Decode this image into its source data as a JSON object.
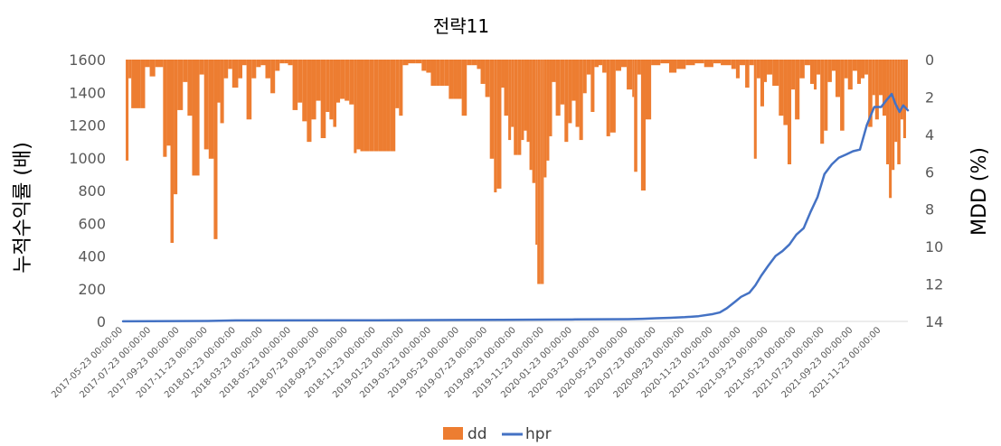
{
  "chart_data": {
    "type": "bar+line",
    "title": "전략11",
    "ylabel_left": "누적수익률 (배)",
    "ylabel_right": "MDD (%)",
    "ylim_left": [
      0,
      1600
    ],
    "yticks_left": [
      0,
      200,
      400,
      600,
      800,
      1000,
      1200,
      1400,
      1600
    ],
    "ylim_right": [
      0,
      14
    ],
    "right_axis_inverted": true,
    "yticks_right": [
      0,
      2,
      4,
      6,
      8,
      10,
      12,
      14
    ],
    "xticks": [
      "2017-05-23 00:00:00",
      "2017-07-23 00:00:00",
      "2017-09-23 00:00:00",
      "2017-11-23 00:00:00",
      "2018-01-23 00:00:00",
      "2018-03-23 00:00:00",
      "2018-05-23 00:00:00",
      "2018-07-23 00:00:00",
      "2018-09-23 00:00:00",
      "2018-11-23 00:00:00",
      "2019-01-23 00:00:00",
      "2019-03-23 00:00:00",
      "2019-05-23 00:00:00",
      "2019-07-23 00:00:00",
      "2019-09-23 00:00:00",
      "2019-11-23 00:00:00",
      "2020-01-23 00:00:00",
      "2020-03-23 00:00:00",
      "2020-05-23 00:00:00",
      "2020-07-23 00:00:00",
      "2020-09-23 00:00:00",
      "2020-11-23 00:00:00",
      "2021-01-23 00:00:00",
      "2021-03-23 00:00:00",
      "2021-05-23 00:00:00",
      "2021-07-23 00:00:00",
      "2021-09-23 00:00:00",
      "2021-11-23 00:00:00"
    ],
    "x_start": "2017-05-23",
    "x_end": "2022-01-20",
    "grid": false,
    "legend": "bottom",
    "series": [
      {
        "name": "dd",
        "type": "bar",
        "axis": "right",
        "color": "#ED7D31",
        "points": [
          [
            "2017-05-23",
            0
          ],
          [
            "2017-05-29",
            5.4
          ],
          [
            "2017-06-04",
            1.0
          ],
          [
            "2017-06-10",
            2.6
          ],
          [
            "2017-07-01",
            2.6
          ],
          [
            "2017-07-10",
            0.4
          ],
          [
            "2017-07-20",
            0.9
          ],
          [
            "2017-08-01",
            0.4
          ],
          [
            "2017-08-18",
            5.2
          ],
          [
            "2017-08-26",
            4.6
          ],
          [
            "2017-09-03",
            9.8
          ],
          [
            "2017-09-10",
            7.2
          ],
          [
            "2017-09-18",
            2.7
          ],
          [
            "2017-09-30",
            1.2
          ],
          [
            "2017-10-10",
            3.0
          ],
          [
            "2017-10-20",
            6.2
          ],
          [
            "2017-11-05",
            0.8
          ],
          [
            "2017-11-15",
            4.8
          ],
          [
            "2017-11-25",
            5.3
          ],
          [
            "2017-12-06",
            9.6
          ],
          [
            "2017-12-14",
            2.3
          ],
          [
            "2017-12-20",
            3.4
          ],
          [
            "2017-12-28",
            1.0
          ],
          [
            "2018-01-06",
            0.5
          ],
          [
            "2018-01-15",
            1.5
          ],
          [
            "2018-01-28",
            1.0
          ],
          [
            "2018-02-06",
            0.3
          ],
          [
            "2018-02-15",
            3.2
          ],
          [
            "2018-02-26",
            1.0
          ],
          [
            "2018-03-08",
            0.4
          ],
          [
            "2018-03-18",
            0.3
          ],
          [
            "2018-03-28",
            1.0
          ],
          [
            "2018-04-08",
            1.8
          ],
          [
            "2018-04-18",
            0.6
          ],
          [
            "2018-04-28",
            0.2
          ],
          [
            "2018-05-08",
            0.2
          ],
          [
            "2018-05-16",
            0.3
          ],
          [
            "2018-05-26",
            2.7
          ],
          [
            "2018-06-06",
            2.3
          ],
          [
            "2018-06-16",
            3.3
          ],
          [
            "2018-06-26",
            4.4
          ],
          [
            "2018-07-06",
            3.2
          ],
          [
            "2018-07-16",
            2.2
          ],
          [
            "2018-07-26",
            4.2
          ],
          [
            "2018-08-06",
            2.8
          ],
          [
            "2018-08-14",
            3.2
          ],
          [
            "2018-08-22",
            3.6
          ],
          [
            "2018-08-29",
            2.3
          ],
          [
            "2018-09-06",
            2.1
          ],
          [
            "2018-09-16",
            2.2
          ],
          [
            "2018-09-26",
            2.4
          ],
          [
            "2018-10-06",
            5.0
          ],
          [
            "2018-10-12",
            4.8
          ],
          [
            "2018-10-20",
            4.9
          ],
          [
            "2018-10-28",
            4.9
          ],
          [
            "2018-11-08",
            4.9
          ],
          [
            "2018-11-18",
            4.9
          ],
          [
            "2018-11-28",
            4.9
          ],
          [
            "2018-12-08",
            4.9
          ],
          [
            "2018-12-16",
            4.9
          ],
          [
            "2018-12-24",
            4.9
          ],
          [
            "2019-01-04",
            2.6
          ],
          [
            "2019-01-12",
            3.0
          ],
          [
            "2019-01-20",
            0.3
          ],
          [
            "2019-02-01",
            0.2
          ],
          [
            "2019-02-16",
            0.2
          ],
          [
            "2019-03-02",
            0.6
          ],
          [
            "2019-03-12",
            0.7
          ],
          [
            "2019-03-22",
            1.4
          ],
          [
            "2019-04-02",
            1.4
          ],
          [
            "2019-04-10",
            1.4
          ],
          [
            "2019-04-20",
            1.4
          ],
          [
            "2019-04-30",
            2.1
          ],
          [
            "2019-05-10",
            2.1
          ],
          [
            "2019-05-18",
            2.1
          ],
          [
            "2019-05-28",
            3.0
          ],
          [
            "2019-06-08",
            0.3
          ],
          [
            "2019-06-18",
            0.3
          ],
          [
            "2019-06-30",
            0.5
          ],
          [
            "2019-07-08",
            1.3
          ],
          [
            "2019-07-18",
            2.0
          ],
          [
            "2019-07-28",
            5.3
          ],
          [
            "2019-08-06",
            7.1
          ],
          [
            "2019-08-12",
            6.9
          ],
          [
            "2019-08-22",
            1.5
          ],
          [
            "2019-08-28",
            3.0
          ],
          [
            "2019-09-06",
            4.3
          ],
          [
            "2019-09-12",
            3.6
          ],
          [
            "2019-09-18",
            5.1
          ],
          [
            "2019-09-26",
            5.1
          ],
          [
            "2019-10-04",
            4.3
          ],
          [
            "2019-10-10",
            3.8
          ],
          [
            "2019-10-16",
            4.4
          ],
          [
            "2019-10-22",
            5.9
          ],
          [
            "2019-10-28",
            6.6
          ],
          [
            "2019-11-04",
            9.9
          ],
          [
            "2019-11-08",
            12.0
          ],
          [
            "2019-11-14",
            12.0
          ],
          [
            "2019-11-18",
            12.0
          ],
          [
            "2019-11-22",
            6.3
          ],
          [
            "2019-11-28",
            5.4
          ],
          [
            "2019-12-04",
            4.1
          ],
          [
            "2019-12-10",
            1.2
          ],
          [
            "2019-12-18",
            3.0
          ],
          [
            "2019-12-28",
            2.4
          ],
          [
            "2020-01-06",
            4.4
          ],
          [
            "2020-01-14",
            3.4
          ],
          [
            "2020-01-22",
            2.2
          ],
          [
            "2020-01-30",
            3.6
          ],
          [
            "2020-02-07",
            4.3
          ],
          [
            "2020-02-15",
            1.8
          ],
          [
            "2020-02-23",
            0.8
          ],
          [
            "2020-03-03",
            2.8
          ],
          [
            "2020-03-11",
            0.4
          ],
          [
            "2020-03-20",
            0.3
          ],
          [
            "2020-03-28",
            0.7
          ],
          [
            "2020-04-06",
            4.1
          ],
          [
            "2020-04-14",
            3.9
          ],
          [
            "2020-04-26",
            0.6
          ],
          [
            "2020-05-08",
            0.4
          ],
          [
            "2020-05-20",
            1.6
          ],
          [
            "2020-06-01",
            2.0
          ],
          [
            "2020-06-05",
            6.0
          ],
          [
            "2020-06-12",
            0.8
          ],
          [
            "2020-06-20",
            7.0
          ],
          [
            "2020-06-30",
            3.2
          ],
          [
            "2020-07-12",
            0.3
          ],
          [
            "2020-08-01",
            0.2
          ],
          [
            "2020-08-20",
            0.7
          ],
          [
            "2020-09-05",
            0.5
          ],
          [
            "2020-09-25",
            0.3
          ],
          [
            "2020-10-15",
            0.2
          ],
          [
            "2020-11-04",
            0.4
          ],
          [
            "2020-11-24",
            0.2
          ],
          [
            "2020-12-10",
            0.3
          ],
          [
            "2021-01-02",
            0.5
          ],
          [
            "2021-01-12",
            1.0
          ],
          [
            "2021-01-20",
            0.3
          ],
          [
            "2021-02-01",
            1.5
          ],
          [
            "2021-02-10",
            0.3
          ],
          [
            "2021-02-20",
            5.3
          ],
          [
            "2021-02-26",
            1.0
          ],
          [
            "2021-03-06",
            2.5
          ],
          [
            "2021-03-14",
            1.2
          ],
          [
            "2021-03-20",
            0.8
          ],
          [
            "2021-04-01",
            1.4
          ],
          [
            "2021-04-15",
            3.0
          ],
          [
            "2021-04-25",
            3.5
          ],
          [
            "2021-05-04",
            5.6
          ],
          [
            "2021-05-12",
            1.6
          ],
          [
            "2021-05-20",
            3.2
          ],
          [
            "2021-05-30",
            1.0
          ],
          [
            "2021-06-10",
            0.3
          ],
          [
            "2021-06-22",
            1.3
          ],
          [
            "2021-06-30",
            1.6
          ],
          [
            "2021-07-06",
            0.8
          ],
          [
            "2021-07-14",
            4.5
          ],
          [
            "2021-07-22",
            3.8
          ],
          [
            "2021-07-30",
            1.2
          ],
          [
            "2021-08-08",
            0.6
          ],
          [
            "2021-08-16",
            2.0
          ],
          [
            "2021-08-26",
            3.8
          ],
          [
            "2021-09-04",
            1.0
          ],
          [
            "2021-09-12",
            1.6
          ],
          [
            "2021-09-22",
            0.6
          ],
          [
            "2021-10-02",
            1.3
          ],
          [
            "2021-10-10",
            1.0
          ],
          [
            "2021-10-18",
            0.8
          ],
          [
            "2021-10-26",
            3.6
          ],
          [
            "2021-11-04",
            1.9
          ],
          [
            "2021-11-10",
            3.2
          ],
          [
            "2021-11-18",
            1.9
          ],
          [
            "2021-11-26",
            3.0
          ],
          [
            "2021-12-04",
            5.6
          ],
          [
            "2021-12-10",
            7.4
          ],
          [
            "2021-12-16",
            5.9
          ],
          [
            "2021-12-22",
            4.4
          ],
          [
            "2021-12-28",
            5.6
          ],
          [
            "2022-01-04",
            3.2
          ],
          [
            "2022-01-10",
            4.2
          ],
          [
            "2022-01-16",
            2.6
          ]
        ]
      },
      {
        "name": "hpr",
        "type": "line",
        "axis": "left",
        "color": "#4472C4",
        "points": [
          [
            "2017-05-23",
            1
          ],
          [
            "2017-11-23",
            3
          ],
          [
            "2018-01-23",
            6
          ],
          [
            "2018-11-23",
            7
          ],
          [
            "2019-05-23",
            9
          ],
          [
            "2019-08-23",
            10
          ],
          [
            "2019-11-23",
            11
          ],
          [
            "2020-01-23",
            12
          ],
          [
            "2020-03-23",
            13
          ],
          [
            "2020-05-23",
            14
          ],
          [
            "2020-06-23",
            16
          ],
          [
            "2020-07-23",
            19
          ],
          [
            "2020-08-23",
            22
          ],
          [
            "2020-09-23",
            26
          ],
          [
            "2020-10-23",
            32
          ],
          [
            "2020-11-23",
            45
          ],
          [
            "2020-12-08",
            55
          ],
          [
            "2020-12-23",
            80
          ],
          [
            "2021-01-10",
            120
          ],
          [
            "2021-01-23",
            150
          ],
          [
            "2021-02-10",
            175
          ],
          [
            "2021-02-23",
            220
          ],
          [
            "2021-03-08",
            280
          ],
          [
            "2021-03-23",
            340
          ],
          [
            "2021-04-08",
            400
          ],
          [
            "2021-04-23",
            430
          ],
          [
            "2021-05-08",
            470
          ],
          [
            "2021-05-23",
            530
          ],
          [
            "2021-06-08",
            570
          ],
          [
            "2021-06-23",
            670
          ],
          [
            "2021-07-08",
            760
          ],
          [
            "2021-07-23",
            900
          ],
          [
            "2021-08-08",
            960
          ],
          [
            "2021-08-23",
            1000
          ],
          [
            "2021-09-08",
            1020
          ],
          [
            "2021-09-23",
            1040
          ],
          [
            "2021-10-08",
            1050
          ],
          [
            "2021-10-23",
            1200
          ],
          [
            "2021-11-08",
            1310
          ],
          [
            "2021-11-23",
            1310
          ],
          [
            "2021-12-04",
            1350
          ],
          [
            "2021-12-16",
            1390
          ],
          [
            "2021-12-24",
            1330
          ],
          [
            "2022-01-02",
            1280
          ],
          [
            "2022-01-10",
            1320
          ],
          [
            "2022-01-20",
            1290
          ]
        ]
      }
    ]
  }
}
